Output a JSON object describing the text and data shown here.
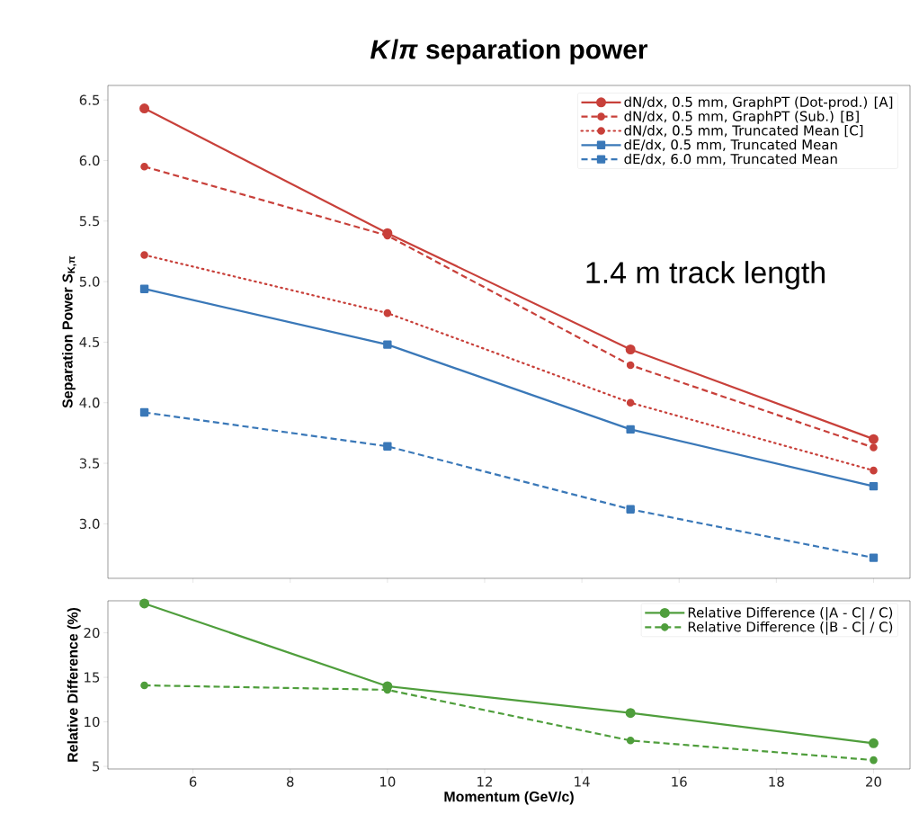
{
  "chart_data": [
    {
      "type": "line",
      "title": "*K*/*π* separation power",
      "ylabel": "Separation Power *S*$_{K,π}$",
      "x": [
        5,
        10,
        15,
        20
      ],
      "series": [
        {
          "name": "dN/dx, 0.5 mm, GraphPT (Dot-prod.) [A]",
          "color": "#c8403a",
          "values": [
            6.43,
            5.4,
            4.44,
            3.7
          ],
          "marker": "circle",
          "line_style": "solid"
        },
        {
          "name": "dN/dx, 0.5 mm, GraphPT (Sub.) [B]",
          "color": "#c8403a",
          "values": [
            5.95,
            5.38,
            4.31,
            3.63
          ],
          "marker": "circle",
          "line_style": "dashed"
        },
        {
          "name": "dN/dx, 0.5 mm, Truncated Mean [C]",
          "color": "#c8403a",
          "values": [
            5.22,
            4.74,
            4.0,
            3.44
          ],
          "marker": "circle",
          "line_style": "dotted"
        },
        {
          "name": "dE/dx, 0.5 mm, Truncated Mean",
          "color": "#3a78b8",
          "values": [
            4.94,
            4.48,
            3.78,
            3.31
          ],
          "marker": "square",
          "line_style": "solid"
        },
        {
          "name": "dE/dx, 6.0 mm, Truncated Mean",
          "color": "#3a78b8",
          "values": [
            3.92,
            3.64,
            3.12,
            2.72
          ],
          "marker": "square",
          "line_style": "dashed"
        }
      ],
      "xlim": [
        4.25,
        20.75
      ],
      "xticks": [
        6,
        8,
        10,
        12,
        14,
        16,
        18,
        20
      ],
      "ylim": [
        2.55,
        6.62
      ],
      "yticks": [
        {
          "value": 3,
          "label": "3.0"
        },
        3.5,
        {
          "value": 4,
          "label": "4.0"
        },
        4.5,
        {
          "value": 5,
          "label": "5.0"
        },
        5.5,
        {
          "value": 6,
          "label": "6.0"
        },
        6.5
      ],
      "tick_labels": "y",
      "legend": "top right",
      "grid": false,
      "annotations": [
        "1.4 m track length"
      ]
    },
    {
      "type": "line",
      "xlabel": "Momentum (GeV/c)",
      "ylabel": "Relative Difference (%)",
      "x": [
        5,
        10,
        15,
        20
      ],
      "series": [
        {
          "name": "Relative Difference (|A - C| / C)",
          "color": "#4f9e3c",
          "values": [
            23.3,
            14.0,
            11.0,
            7.6
          ],
          "marker": "circle",
          "line_style": "solid"
        },
        {
          "name": "Relative Difference (|B - C| / C)",
          "color": "#4f9e3c",
          "values": [
            14.1,
            13.6,
            7.9,
            5.7
          ],
          "marker": "circle",
          "line_style": "dashed"
        }
      ],
      "xlim": [
        4.25,
        20.75
      ],
      "xticks": [
        6,
        8,
        10,
        12,
        14,
        16,
        18,
        20
      ],
      "ylim": [
        4.7,
        23.6
      ],
      "yticks": [
        5,
        10,
        15,
        20
      ],
      "legend": "top right",
      "grid": false
    }
  ]
}
